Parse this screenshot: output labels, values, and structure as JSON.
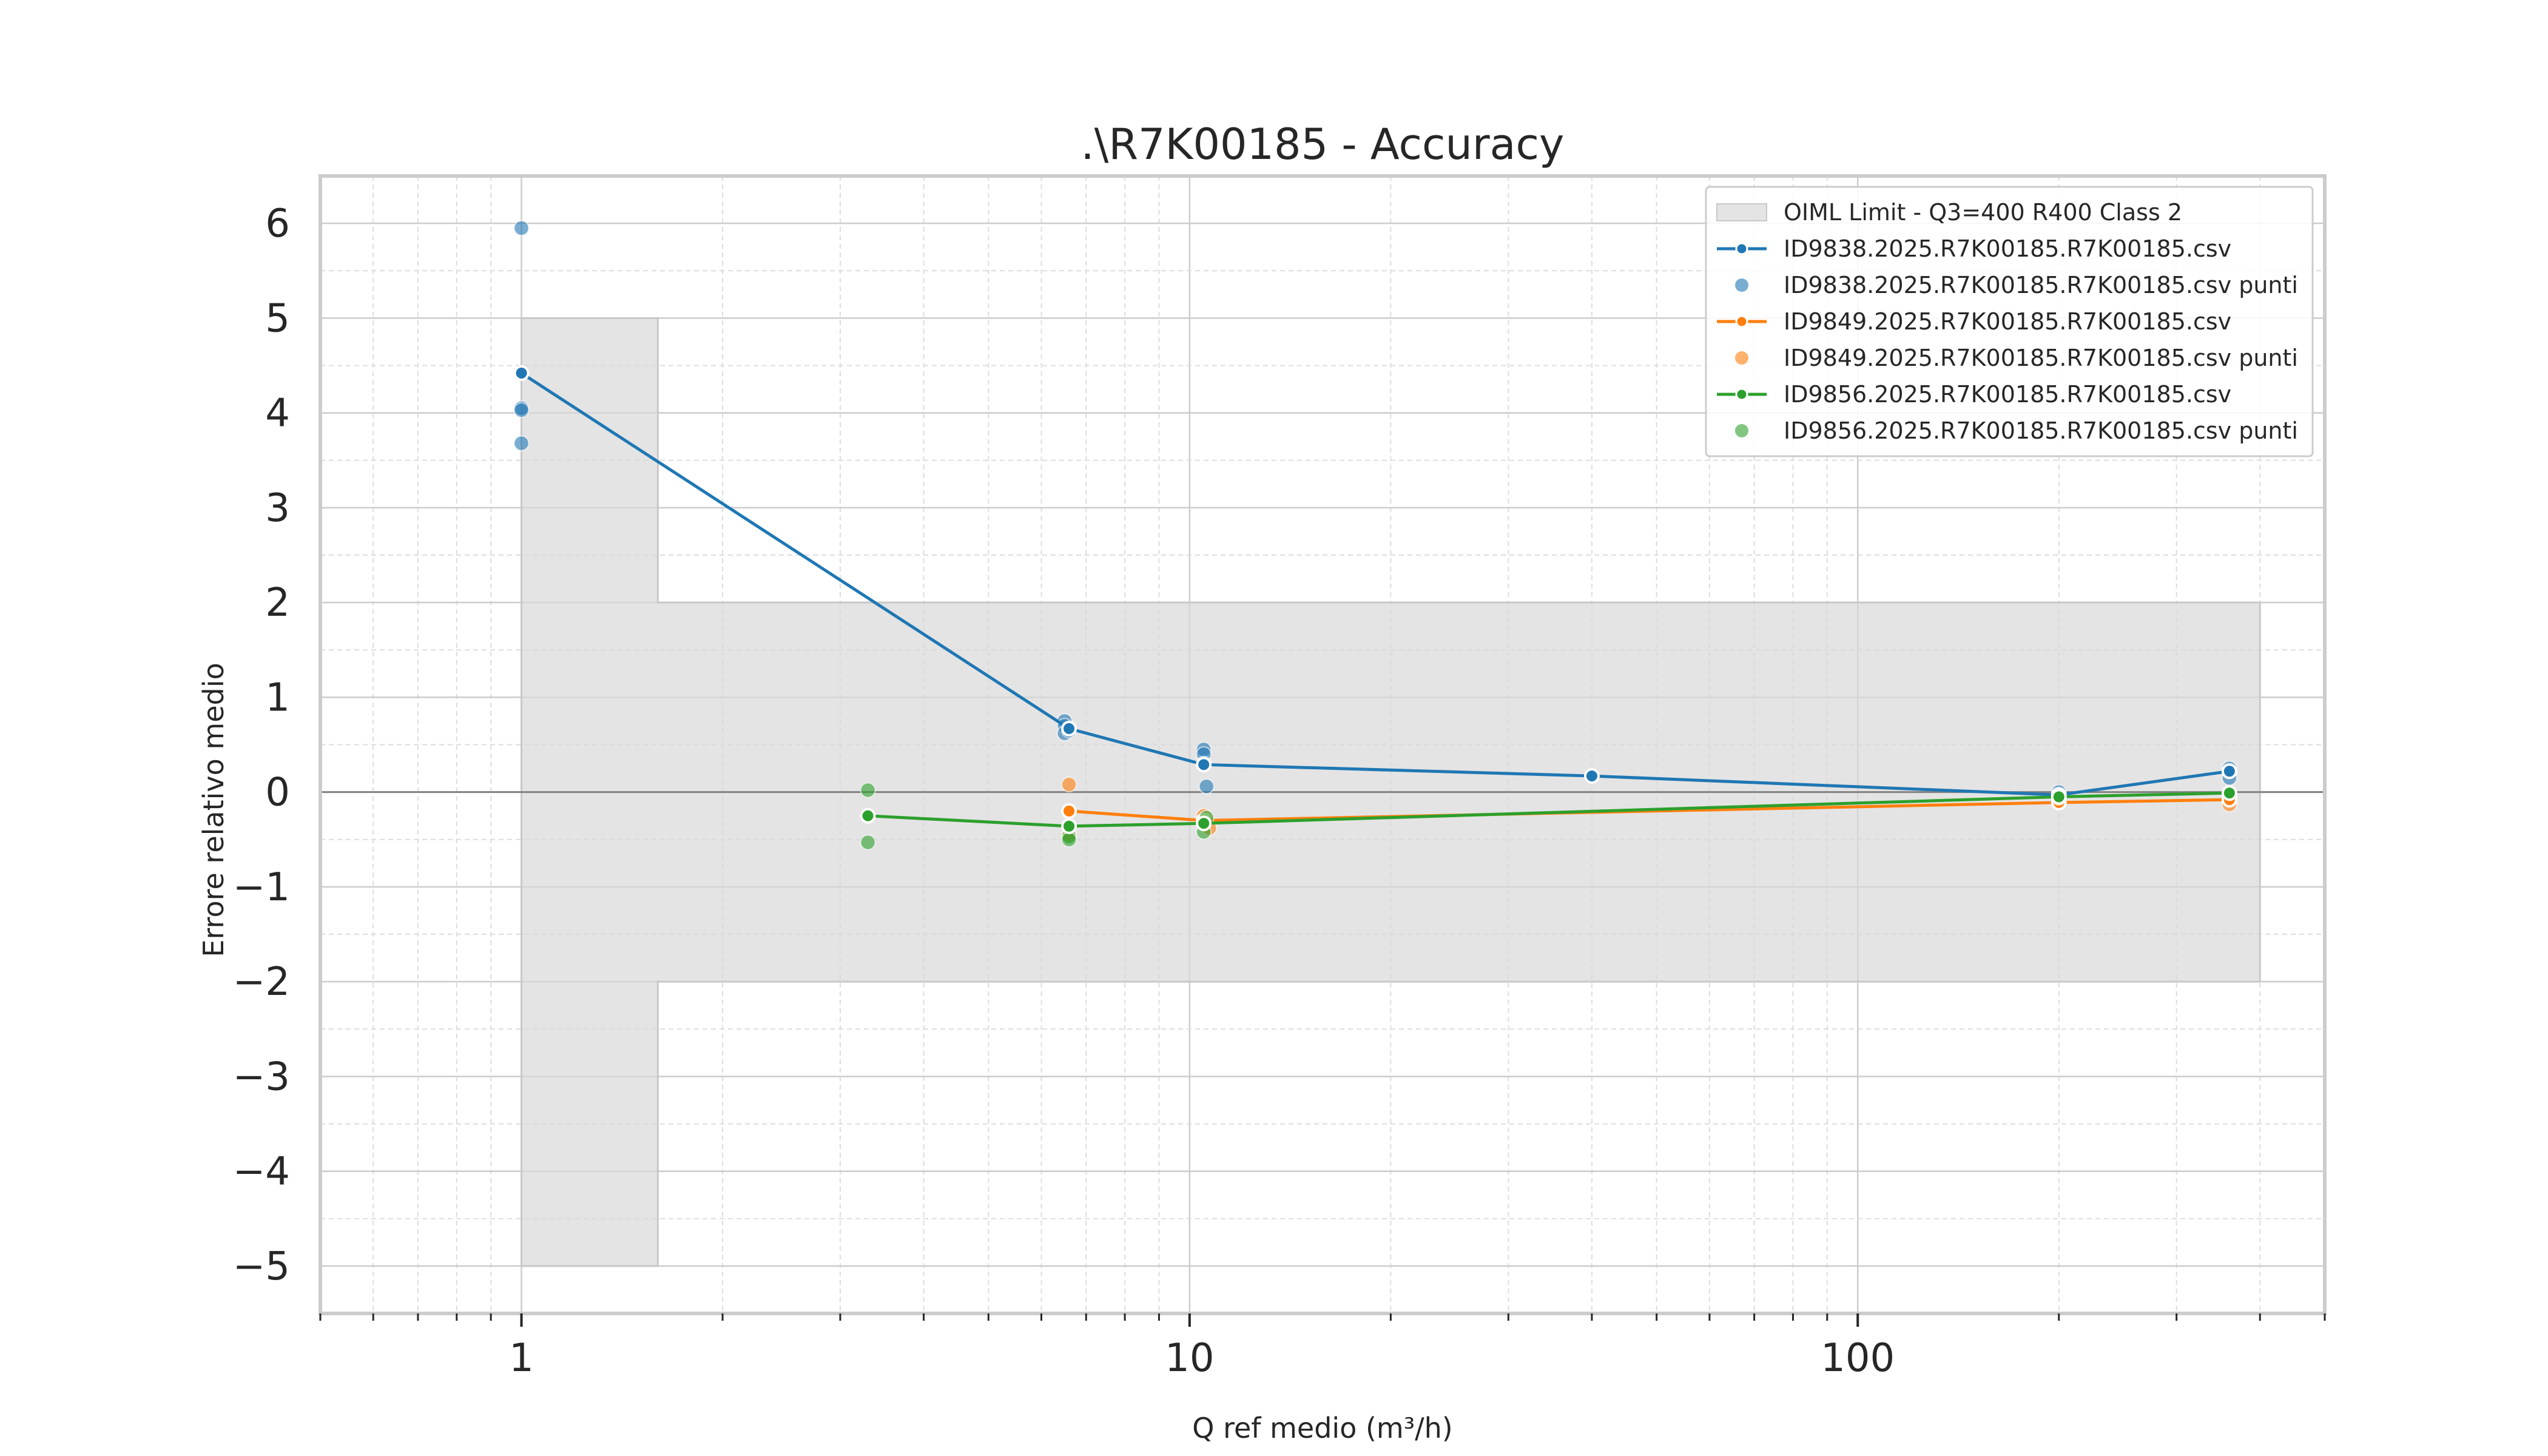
{
  "chart_data": {
    "type": "line",
    "title": ".\\R7K00185 - Accuracy",
    "xlabel": "Q ref medio (m³/h)",
    "ylabel": "Errore relativo medio",
    "xscale": "log",
    "xlim": [
      0.5,
      500
    ],
    "ylim": [
      -5.5,
      6.5
    ],
    "x_ticks": [
      1,
      10,
      100
    ],
    "x_tick_labels": [
      "1",
      "10",
      "100"
    ],
    "y_ticks": [
      -5,
      -4,
      -3,
      -2,
      -1,
      0,
      1,
      2,
      3,
      4,
      5,
      6
    ],
    "y_tick_labels": [
      "−5",
      "−4",
      "−3",
      "−2",
      "−1",
      "0",
      "1",
      "2",
      "3",
      "4",
      "5",
      "6"
    ],
    "grid": true,
    "legend_position": "top-right",
    "limit_band": {
      "name": "OIML Limit - Q3=400 R400 Class 2",
      "color": "#d9d9d9",
      "x": [
        1,
        1.6,
        1.6,
        400
      ],
      "upper": [
        5,
        5,
        2,
        2
      ],
      "lower": [
        -5,
        -5,
        -2,
        -2
      ]
    },
    "series": [
      {
        "name": "ID9838.2025.R7K00185.R7K00185.csv",
        "points_name": "ID9838.2025.R7K00185.R7K00185.csv punti",
        "color": "#1f77b4",
        "x": [
          1,
          6.6,
          10.5,
          40,
          200,
          360
        ],
        "y": [
          4.42,
          0.67,
          0.29,
          0.17,
          -0.03,
          0.22
        ],
        "points_x": [
          1,
          1,
          1,
          1,
          6.5,
          6.5,
          6.5,
          6.6,
          10.5,
          10.5,
          10.5,
          10.6,
          40,
          200,
          200,
          360,
          360,
          360
        ],
        "points_y": [
          5.95,
          4.05,
          4.03,
          3.68,
          0.75,
          0.7,
          0.62,
          0.65,
          0.45,
          0.4,
          0.3,
          0.06,
          0.17,
          0.0,
          -0.05,
          0.25,
          0.22,
          0.15
        ]
      },
      {
        "name": "ID9849.2025.R7K00185.R7K00185.csv",
        "points_name": "ID9849.2025.R7K00185.R7K00185.csv punti",
        "color": "#ff7f0e",
        "x": [
          6.6,
          10.5,
          200,
          360
        ],
        "y": [
          -0.2,
          -0.3,
          -0.11,
          -0.08
        ],
        "points_x": [
          6.6,
          6.6,
          6.6,
          10.5,
          10.6,
          10.7,
          200,
          360,
          360
        ],
        "points_y": [
          0.08,
          -0.2,
          -0.45,
          -0.25,
          -0.3,
          -0.38,
          -0.1,
          -0.05,
          -0.13
        ]
      },
      {
        "name": "ID9856.2025.R7K00185.R7K00185.csv",
        "points_name": "ID9856.2025.R7K00185.R7K00185.csv punti",
        "color": "#2ca02c",
        "x": [
          3.3,
          6.6,
          10.5,
          200,
          360
        ],
        "y": [
          -0.25,
          -0.36,
          -0.33,
          -0.05,
          -0.01
        ],
        "points_x": [
          3.3,
          3.3,
          6.6,
          6.6,
          10.5,
          10.6,
          200,
          360
        ],
        "points_y": [
          0.02,
          -0.53,
          -0.47,
          -0.5,
          -0.42,
          -0.27,
          -0.06,
          -0.01
        ]
      }
    ]
  }
}
